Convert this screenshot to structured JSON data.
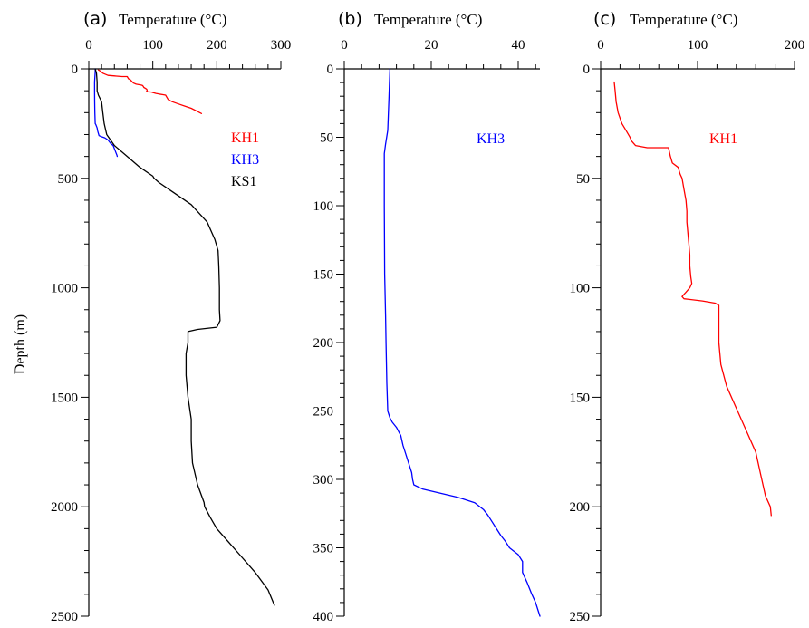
{
  "chart_data": [
    {
      "type": "line",
      "panel_label": "(a)",
      "xlabel": "Temperature (°C)",
      "ylabel": "Depth (m)",
      "xlim": [
        0,
        300
      ],
      "ylim": [
        0,
        2500
      ],
      "y_inverted": true,
      "x_axis_position": "top",
      "xticks": [
        0,
        100,
        200,
        300
      ],
      "yticks": [
        0,
        500,
        1000,
        1500,
        2000,
        2500
      ],
      "legend_placement": "top-right",
      "series": [
        {
          "name": "KH1",
          "color": "#ff0000",
          "points": [
            [
              15,
              5
            ],
            [
              18,
              10
            ],
            [
              22,
              20
            ],
            [
              30,
              30
            ],
            [
              52,
              35
            ],
            [
              60,
              35
            ],
            [
              62,
              45
            ],
            [
              65,
              50
            ],
            [
              68,
              60
            ],
            [
              70,
              65
            ],
            [
              74,
              70
            ],
            [
              78,
              72
            ],
            [
              82,
              74
            ],
            [
              84,
              76
            ],
            [
              85,
              80
            ],
            [
              86,
              85
            ],
            [
              88,
              88
            ],
            [
              90,
              92
            ],
            [
              91,
              95
            ],
            [
              91,
              100
            ],
            [
              90,
              104
            ],
            [
              98,
              106
            ],
            [
              100,
              108
            ],
            [
              105,
              112
            ],
            [
              110,
              115
            ],
            [
              116,
              118
            ],
            [
              120,
              120
            ],
            [
              122,
              130
            ],
            [
              124,
              140
            ],
            [
              130,
              150
            ],
            [
              140,
              160
            ],
            [
              150,
              170
            ],
            [
              160,
              180
            ],
            [
              170,
              195
            ],
            [
              176,
              204
            ]
          ]
        },
        {
          "name": "KH3",
          "color": "#0000ff",
          "points": [
            [
              10,
              0
            ],
            [
              10,
              15
            ],
            [
              9.5,
              40
            ],
            [
              9,
              60
            ],
            [
              9,
              100
            ],
            [
              9.2,
              150
            ],
            [
              9.5,
              200
            ],
            [
              10,
              250
            ],
            [
              11,
              255
            ],
            [
              13,
              270
            ],
            [
              14,
              285
            ],
            [
              15,
              295
            ],
            [
              16,
              305
            ],
            [
              20,
              310
            ],
            [
              25,
              315
            ],
            [
              30,
              325
            ],
            [
              34,
              340
            ],
            [
              38,
              350
            ],
            [
              40,
              365
            ],
            [
              42,
              380
            ],
            [
              44,
              395
            ],
            [
              44.5,
              400
            ]
          ]
        },
        {
          "name": "KS1",
          "color": "#000000",
          "points": [
            [
              10,
              0
            ],
            [
              12,
              20
            ],
            [
              13,
              60
            ],
            [
              13,
              100
            ],
            [
              15,
              120
            ],
            [
              20,
              150
            ],
            [
              22,
              200
            ],
            [
              24,
              250
            ],
            [
              28,
              300
            ],
            [
              40,
              350
            ],
            [
              60,
              400
            ],
            [
              80,
              450
            ],
            [
              100,
              490
            ],
            [
              102,
              500
            ],
            [
              110,
              520
            ],
            [
              130,
              560
            ],
            [
              160,
              620
            ],
            [
              185,
              700
            ],
            [
              197,
              780
            ],
            [
              202,
              830
            ],
            [
              203,
              900
            ],
            [
              204,
              1000
            ],
            [
              204,
              1100
            ],
            [
              205,
              1150
            ],
            [
              200,
              1180
            ],
            [
              170,
              1190
            ],
            [
              155,
              1200
            ],
            [
              155,
              1250
            ],
            [
              152,
              1300
            ],
            [
              152,
              1400
            ],
            [
              155,
              1500
            ],
            [
              160,
              1600
            ],
            [
              160,
              1700
            ],
            [
              162,
              1800
            ],
            [
              170,
              1900
            ],
            [
              180,
              1980
            ],
            [
              181,
              2000
            ],
            [
              190,
              2050
            ],
            [
              200,
              2100
            ],
            [
              230,
              2200
            ],
            [
              260,
              2300
            ],
            [
              280,
              2380
            ],
            [
              290,
              2450
            ]
          ]
        }
      ]
    },
    {
      "type": "line",
      "panel_label": "(b)",
      "xlabel": "Temperature (°C)",
      "ylabel": "",
      "xlim": [
        0,
        45
      ],
      "ylim": [
        0,
        400
      ],
      "y_inverted": true,
      "x_axis_position": "top",
      "xticks": [
        0,
        20,
        40
      ],
      "yticks": [
        0,
        50,
        100,
        150,
        200,
        250,
        300,
        350,
        400
      ],
      "legend_placement": "top-right",
      "series": [
        {
          "name": "KH3",
          "color": "#0000ff",
          "points": [
            [
              10.5,
              0
            ],
            [
              10.3,
              20
            ],
            [
              10,
              45
            ],
            [
              9.5,
              55
            ],
            [
              9.2,
              62
            ],
            [
              9.2,
              100
            ],
            [
              9.3,
              150
            ],
            [
              9.5,
              180
            ],
            [
              9.6,
              200
            ],
            [
              9.8,
              230
            ],
            [
              10,
              250
            ],
            [
              10.5,
              255
            ],
            [
              11,
              258
            ],
            [
              12,
              262
            ],
            [
              13,
              268
            ],
            [
              13.5,
              275
            ],
            [
              14,
              280
            ],
            [
              14.5,
              285
            ],
            [
              15,
              290
            ],
            [
              15.5,
              295
            ],
            [
              15.7,
              300
            ],
            [
              16,
              304
            ],
            [
              18,
              307
            ],
            [
              22,
              310
            ],
            [
              26,
              313
            ],
            [
              30,
              317
            ],
            [
              32,
              322
            ],
            [
              33,
              326
            ],
            [
              34,
              331
            ],
            [
              35,
              336
            ],
            [
              36,
              341
            ],
            [
              37,
              345
            ],
            [
              38,
              350
            ],
            [
              40,
              355
            ],
            [
              41,
              360
            ],
            [
              41,
              368
            ],
            [
              42,
              375
            ],
            [
              43,
              383
            ],
            [
              44,
              390
            ],
            [
              44.5,
              395
            ],
            [
              45,
              400
            ]
          ]
        }
      ]
    },
    {
      "type": "line",
      "panel_label": "(c)",
      "xlabel": "Temperature (°C)",
      "ylabel": "",
      "xlim": [
        0,
        200
      ],
      "ylim": [
        0,
        250
      ],
      "y_inverted": true,
      "x_axis_position": "top",
      "xticks": [
        0,
        100,
        200
      ],
      "yticks": [
        0,
        50,
        100,
        150,
        200,
        250
      ],
      "legend_placement": "top-right",
      "series": [
        {
          "name": "KH1",
          "color": "#ff0000",
          "points": [
            [
              14,
              6
            ],
            [
              15,
              10
            ],
            [
              16,
              15
            ],
            [
              18,
              20
            ],
            [
              22,
              25
            ],
            [
              26,
              28
            ],
            [
              30,
              31
            ],
            [
              32,
              33
            ],
            [
              36,
              35
            ],
            [
              48,
              36
            ],
            [
              70,
              36
            ],
            [
              72,
              40
            ],
            [
              74,
              43
            ],
            [
              80,
              45
            ],
            [
              82,
              48
            ],
            [
              84,
              50
            ],
            [
              86,
              55
            ],
            [
              88,
              60
            ],
            [
              89,
              65
            ],
            [
              89,
              70
            ],
            [
              90,
              75
            ],
            [
              91,
              80
            ],
            [
              92,
              85
            ],
            [
              92,
              90
            ],
            [
              93,
              95
            ],
            [
              94,
              98
            ],
            [
              92,
              100
            ],
            [
              88,
              102
            ],
            [
              86,
              103
            ],
            [
              84,
              104
            ],
            [
              86,
              105
            ],
            [
              105,
              106
            ],
            [
              118,
              107
            ],
            [
              122,
              108
            ],
            [
              122,
              115
            ],
            [
              122,
              125
            ],
            [
              124,
              135
            ],
            [
              130,
              145
            ],
            [
              140,
              155
            ],
            [
              150,
              165
            ],
            [
              160,
              175
            ],
            [
              165,
              185
            ],
            [
              170,
              195
            ],
            [
              175,
              200
            ],
            [
              176,
              204
            ]
          ]
        }
      ]
    }
  ]
}
